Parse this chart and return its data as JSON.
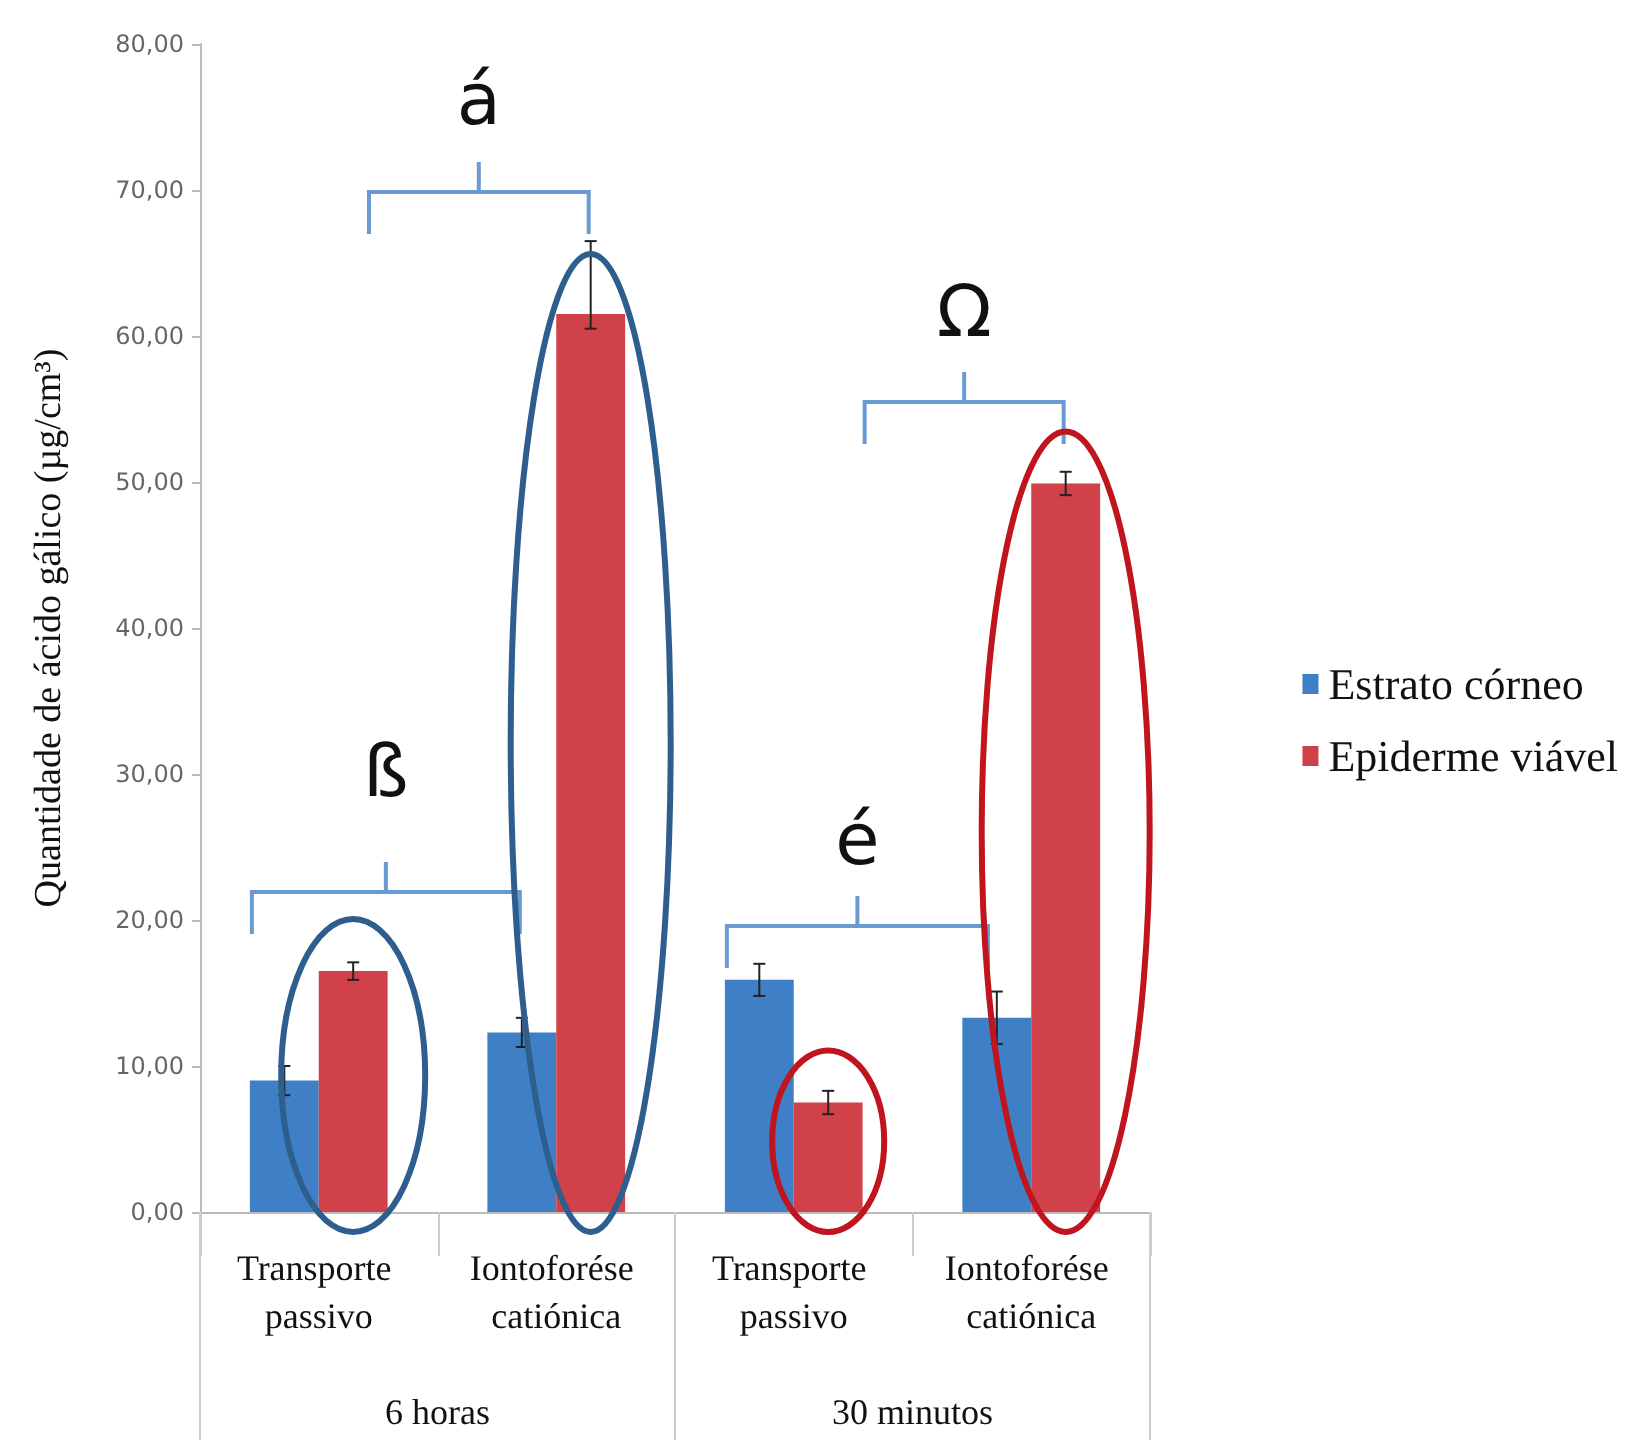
{
  "chart_data": {
    "type": "bar",
    "ylabel": "Quantidade de ácido gálico (µg/cm³)",
    "categories": [
      "Transporte passivo",
      "Iontoforése catiónica",
      "Transporte passivo",
      "Iontoforése catiónica"
    ],
    "series": [
      {
        "name": "Estrato córneo",
        "color": "#3f7fc6",
        "values": [
          9.0,
          12.3,
          15.9,
          13.3
        ],
        "errors": [
          1.0,
          1.0,
          1.1,
          1.8
        ]
      },
      {
        "name": "Epiderme viável",
        "color": "#d1414a",
        "values": [
          16.5,
          61.5,
          7.5,
          49.9
        ],
        "errors": [
          0.6,
          [
            60.5,
            66.5
          ],
          0.8,
          0.8
        ]
      }
    ],
    "ylim": [
      0,
      80
    ],
    "yticks": [
      {
        "value": 0,
        "label": "0,00"
      },
      {
        "value": 10,
        "label": "10,00"
      },
      {
        "value": 20,
        "label": "20,00"
      },
      {
        "value": 30,
        "label": "30,00"
      },
      {
        "value": 40,
        "label": "40,00"
      },
      {
        "value": 50,
        "label": "50,00"
      },
      {
        "value": 60,
        "label": "60,00"
      },
      {
        "value": 70,
        "label": "70,00"
      },
      {
        "value": 80,
        "label": "80,00"
      }
    ],
    "annotations": [
      "á",
      "ß",
      "Ω",
      "é",
      "6 horas",
      "30 minutos"
    ],
    "grid": false,
    "legend": "right"
  }
}
